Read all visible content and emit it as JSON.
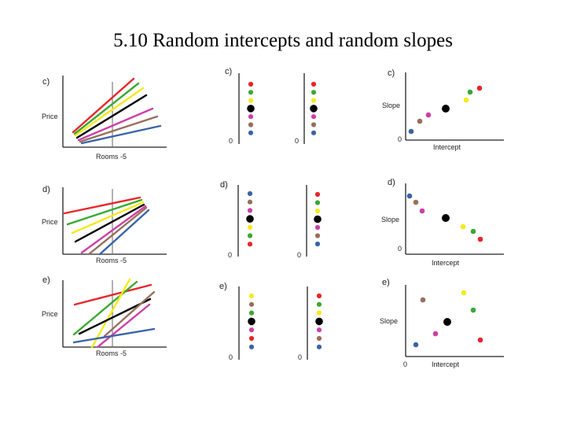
{
  "slide": {
    "title": "5.10 Random intercepts and random slopes"
  },
  "colors": {
    "red": "#e8262a",
    "green": "#3aa832",
    "yellow": "#f5ea1c",
    "black": "#000000",
    "magenta": "#cc3fa8",
    "brown": "#96705a",
    "blue": "#3a64a6",
    "axis": "#222222",
    "refline": "#666666"
  },
  "icons": {
    "point": "filled-circle"
  },
  "rows": [
    {
      "label": "c)",
      "line_plot": {
        "panel_label": "c)",
        "ylabel": "Price",
        "xlabel": "Rooms -5"
      },
      "intercept_strip": {
        "panel_label": "c)",
        "zero_label": "0",
        "order": [
          "red",
          "green",
          "yellow",
          "black",
          "magenta",
          "brown",
          "blue"
        ]
      },
      "slope_strip": {
        "zero_label": "0",
        "order": [
          "red",
          "green",
          "yellow",
          "black",
          "magenta",
          "brown",
          "blue"
        ]
      },
      "scatter": {
        "panel_label": "c)",
        "ylabel": "Slope",
        "xlabel": "Intercept",
        "zero_label": "0"
      }
    },
    {
      "label": "d)",
      "line_plot": {
        "panel_label": "d)",
        "ylabel": "Price",
        "xlabel": "Rooms -5"
      },
      "intercept_strip": {
        "panel_label": "d)",
        "zero_label": "0",
        "order": [
          "blue",
          "brown",
          "magenta",
          "black",
          "yellow",
          "green",
          "red"
        ]
      },
      "slope_strip": {
        "zero_label": "0",
        "order": [
          "red",
          "green",
          "yellow",
          "black",
          "magenta",
          "brown",
          "blue"
        ]
      },
      "scatter": {
        "panel_label": "d)",
        "ylabel": "Slope",
        "xlabel": "Intercept",
        "zero_label": "0"
      }
    },
    {
      "label": "e)",
      "line_plot": {
        "panel_label": "e)",
        "ylabel": "Price",
        "xlabel": "Rooms -5"
      },
      "intercept_strip": {
        "panel_label": "e)",
        "zero_label": "0",
        "order": [
          "yellow",
          "brown",
          "green",
          "black",
          "magenta",
          "red",
          "blue"
        ]
      },
      "slope_strip": {
        "zero_label": "0",
        "order": [
          "red",
          "green",
          "yellow",
          "black",
          "magenta",
          "brown",
          "blue"
        ]
      },
      "scatter": {
        "panel_label": "e)",
        "ylabel": "Slope",
        "xlabel": "Intercept",
        "zero_label": "0"
      }
    }
  ]
}
